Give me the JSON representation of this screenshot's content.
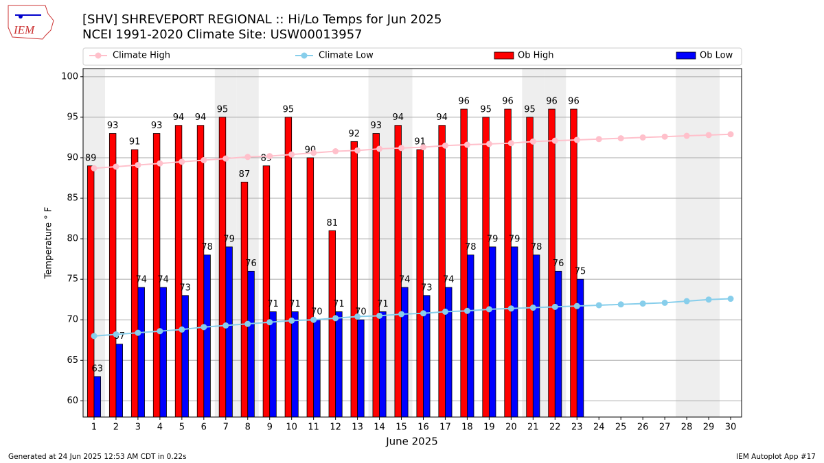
{
  "chart_data": {
    "type": "bar-line",
    "title": "[SHV] SHREVEPORT REGIONAL :: Hi/Lo Temps for Jun 2025",
    "subtitle": "NCEI 1991-2020 Climate Site: USW00013957",
    "xlabel": "June 2025",
    "ylabel": "Temperature $^\\circ$F",
    "ylabel_text": "Temperature ° F",
    "logo_text": "IEM",
    "footer_left": "Generated at 24 Jun 2025 12:53 AM CDT in 0.22s",
    "footer_right": "IEM Autoplot App #17",
    "x": [
      1,
      2,
      3,
      4,
      5,
      6,
      7,
      8,
      9,
      10,
      11,
      12,
      13,
      14,
      15,
      16,
      17,
      18,
      19,
      20,
      21,
      22,
      23,
      24,
      25,
      26,
      27,
      28,
      29,
      30
    ],
    "xlim": [
      0.5,
      30.5
    ],
    "xticks": [
      1,
      2,
      3,
      4,
      5,
      6,
      7,
      8,
      9,
      10,
      11,
      12,
      13,
      14,
      15,
      16,
      17,
      18,
      19,
      20,
      21,
      22,
      23,
      24,
      25,
      26,
      27,
      28,
      29,
      30
    ],
    "ylim": [
      58,
      101
    ],
    "yticks": [
      60,
      65,
      70,
      75,
      80,
      85,
      90,
      95,
      100
    ],
    "grid": true,
    "shaded_days": [
      1,
      7,
      8,
      14,
      15,
      21,
      22,
      28,
      29
    ],
    "series": [
      {
        "name": "Climate High",
        "kind": "line",
        "color": "#ffc0cb",
        "values": [
          88.7,
          88.9,
          89.1,
          89.3,
          89.5,
          89.7,
          89.9,
          90.1,
          90.2,
          90.4,
          90.6,
          90.8,
          90.9,
          91.1,
          91.2,
          91.3,
          91.5,
          91.6,
          91.7,
          91.8,
          92.0,
          92.1,
          92.2,
          92.3,
          92.4,
          92.5,
          92.6,
          92.7,
          92.8,
          92.9
        ]
      },
      {
        "name": "Climate Low",
        "kind": "line",
        "color": "#87ceeb",
        "values": [
          68.0,
          68.2,
          68.4,
          68.6,
          68.8,
          69.1,
          69.3,
          69.5,
          69.7,
          69.9,
          70.0,
          70.2,
          70.4,
          70.5,
          70.7,
          70.8,
          71.0,
          71.1,
          71.3,
          71.4,
          71.5,
          71.6,
          71.7,
          71.8,
          71.9,
          72.0,
          72.1,
          72.3,
          72.5,
          72.6
        ]
      },
      {
        "name": "Ob High",
        "kind": "bar",
        "color": "#ff0000",
        "values": [
          89,
          93,
          91,
          93,
          94,
          94,
          95,
          87,
          89,
          95,
          90,
          81,
          92,
          93,
          94,
          91,
          94,
          96,
          95,
          96,
          95,
          96,
          96,
          null,
          null,
          null,
          null,
          null,
          null,
          null
        ]
      },
      {
        "name": "Ob Low",
        "kind": "bar",
        "color": "#0000ff",
        "values": [
          63,
          67,
          74,
          74,
          73,
          78,
          79,
          76,
          71,
          71,
          70,
          71,
          70,
          71,
          74,
          73,
          74,
          78,
          79,
          79,
          78,
          76,
          75,
          null,
          null,
          null,
          null,
          null,
          null,
          null
        ]
      }
    ]
  }
}
